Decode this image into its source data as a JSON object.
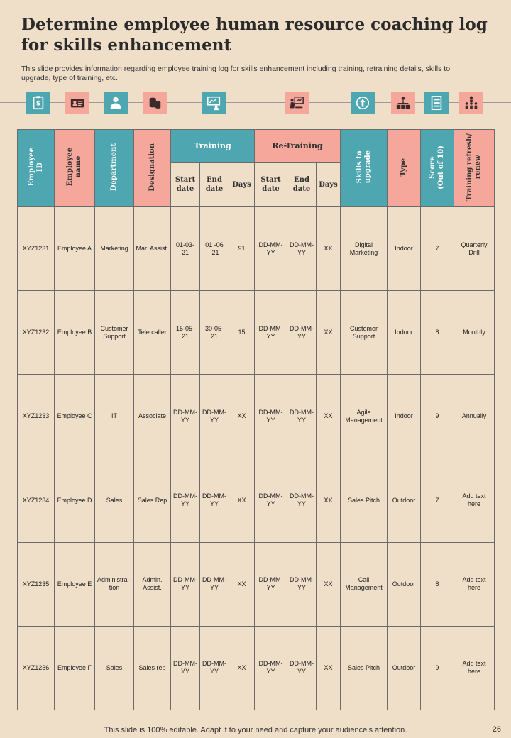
{
  "header": {
    "title": "Determine employee human resource coaching log for skills enhancement",
    "subtitle": "This slide provides information regarding employee training log for skills enhancement including training, retraining details, skills to upgrade, type of training, etc."
  },
  "icons": [
    {
      "name": "clipboard-dollar-icon",
      "color": "#4ea6b0"
    },
    {
      "name": "id-card-icon",
      "color": "#f4a79a"
    },
    {
      "name": "employee-icon",
      "color": "#4ea6b0"
    },
    {
      "name": "coins-icon",
      "color": "#f4a79a"
    },
    {
      "name": "presentation-icon",
      "color": "#4ea6b0"
    },
    {
      "name": "training-board-icon",
      "color": "#f4a79a"
    },
    {
      "name": "upgrade-arrow-icon",
      "color": "#4ea6b0"
    },
    {
      "name": "team-network-icon",
      "color": "#f4a79a"
    },
    {
      "name": "checklist-icon",
      "color": "#4ea6b0"
    },
    {
      "name": "hierarchy-icon",
      "color": "#f4a79a"
    }
  ],
  "table": {
    "headers": {
      "employee_id": "Employee\nID",
      "employee_name": "Employee\nname",
      "department": "Department",
      "designation": "Designation",
      "training": "Training",
      "retraining": "Re-Training",
      "skills": "Skills to\nupgrade",
      "type": "Type",
      "score": "Score\n(Out of 10)",
      "refresh": "Training refresh/\nrenew",
      "start_date": "Start date",
      "end_date": "End date",
      "days": "Days",
      "re_start_date": "Start date",
      "re_end_date": "End date",
      "re_days": "Days"
    },
    "rows": [
      {
        "id": "XYZ1231",
        "name": "Employee A",
        "dept": "Marketing",
        "desig": "Mar. Assist.",
        "start": "01-03-21",
        "end": "01 -06 -21",
        "days": "91",
        "re_start": "DD-MM-YY",
        "re_end": "DD-MM-YY",
        "re_days": "XX",
        "skills": "Digital Marketing",
        "type": "Indoor",
        "score": "7",
        "refresh": "Quarterly Drill"
      },
      {
        "id": "XYZ1232",
        "name": "Employee B",
        "dept": "Customer Support",
        "desig": "Tele caller",
        "start": "15-05-21",
        "end": "30-05-21",
        "days": "15",
        "re_start": "DD-MM-YY",
        "re_end": "DD-MM-YY",
        "re_days": "XX",
        "skills": "Customer Support",
        "type": "Indoor",
        "score": "8",
        "refresh": "Monthly"
      },
      {
        "id": "XYZ1233",
        "name": "Employee C",
        "dept": "IT",
        "desig": "Associate",
        "start": "DD-MM-YY",
        "end": "DD-MM-YY",
        "days": "XX",
        "re_start": "DD-MM-YY",
        "re_end": "DD-MM-YY",
        "re_days": "XX",
        "skills": "Agile Management",
        "type": "Indoor",
        "score": "9",
        "refresh": "Annually"
      },
      {
        "id": "XYZ1234",
        "name": "Employee D",
        "dept": "Sales",
        "desig": "Sales Rep",
        "start": "DD-MM-YY",
        "end": "DD-MM-YY",
        "days": "XX",
        "re_start": "DD-MM-YY",
        "re_end": "DD-MM-YY",
        "re_days": "XX",
        "skills": "Sales Pitch",
        "type": "Outdoor",
        "score": "7",
        "refresh": "Add text here"
      },
      {
        "id": "XYZ1235",
        "name": "Employee E",
        "dept": "Administra - tion",
        "desig": "Admin. Assist.",
        "start": "DD-MM-YY",
        "end": "DD-MM-YY",
        "days": "XX",
        "re_start": "DD-MM-YY",
        "re_end": "DD-MM-YY",
        "re_days": "XX",
        "skills": "Call Management",
        "type": "Outdoor",
        "score": "8",
        "refresh": "Add text here"
      },
      {
        "id": "XYZ1236",
        "name": "Employee F",
        "dept": "Sales",
        "desig": "Sales rep",
        "start": "DD-MM-YY",
        "end": "DD-MM-YY",
        "days": "XX",
        "re_start": "DD-MM-YY",
        "re_end": "DD-MM-YY",
        "re_days": "XX",
        "skills": "Sales Pitch",
        "type": "Outdoor",
        "score": "9",
        "refresh": "Add text here"
      }
    ]
  },
  "footer": {
    "note": "This slide is 100% editable. Adapt it to your need and capture your audience’s attention.",
    "page": "26"
  }
}
